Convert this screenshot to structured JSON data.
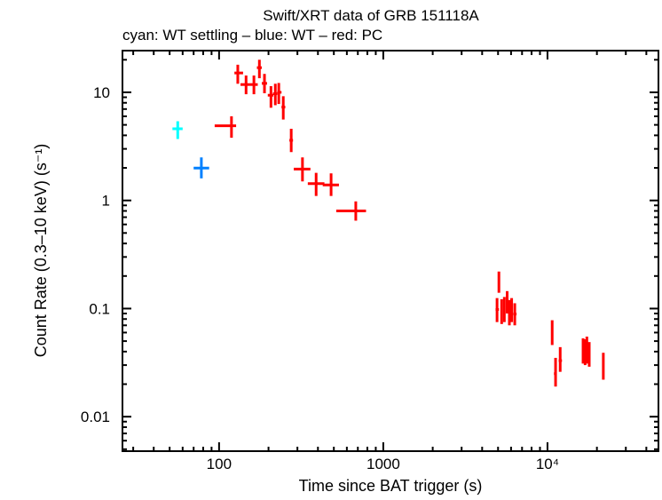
{
  "chart_data": {
    "type": "scatter",
    "title": "Swift/XRT data of GRB 151118A",
    "subtitle": "cyan: WT settling – blue: WT – red: PC",
    "xlabel": "Time since BAT trigger (s)",
    "ylabel": "Count Rate (0.3–10 keV) (s⁻¹)",
    "xscale": "log",
    "yscale": "log",
    "xlim": [
      25.8,
      47400
    ],
    "ylim": [
      0.0048,
      24.3
    ],
    "xticks": [
      {
        "v": 100,
        "label": "100"
      },
      {
        "v": 1000,
        "label": "1000"
      },
      {
        "v": 10000,
        "label": "10⁴"
      }
    ],
    "yticks": [
      {
        "v": 0.01,
        "label": "0.01"
      },
      {
        "v": 0.1,
        "label": "0.1"
      },
      {
        "v": 1,
        "label": "1"
      },
      {
        "v": 10,
        "label": "10"
      }
    ],
    "point_format": [
      "x",
      "x_lo",
      "x_hi",
      "y",
      "y_lo",
      "y_hi"
    ],
    "series": [
      {
        "name": "WT settling",
        "color": "#00ffff",
        "points": [
          [
            56,
            52,
            60,
            4.6,
            3.7,
            5.4
          ]
        ]
      },
      {
        "name": "WT",
        "color": "#0080ff",
        "points": [
          [
            78,
            70,
            87,
            1.99,
            1.6,
            2.5
          ]
        ]
      },
      {
        "name": "PC",
        "color": "#ff0000",
        "points": [
          [
            119,
            94,
            127,
            4.9,
            3.8,
            6.0
          ],
          [
            130,
            124,
            140,
            15.1,
            12,
            18
          ],
          [
            146,
            135,
            154,
            11.8,
            9.6,
            14.3
          ],
          [
            163,
            154,
            172,
            11.8,
            9.6,
            14.3
          ],
          [
            176,
            170,
            182,
            16.9,
            13.5,
            20
          ],
          [
            189,
            182,
            196,
            12.1,
            9.8,
            14.8
          ],
          [
            207,
            198,
            214,
            9.4,
            7.2,
            11.4
          ],
          [
            220,
            213,
            226,
            9.7,
            7.6,
            12
          ],
          [
            231,
            226,
            240,
            10,
            7.8,
            12.2
          ],
          [
            246,
            240,
            253,
            7.3,
            5.6,
            9.2
          ],
          [
            275,
            268,
            282,
            3.6,
            2.8,
            4.6
          ],
          [
            322,
            285,
            360,
            1.95,
            1.5,
            2.5
          ],
          [
            390,
            347,
            438,
            1.43,
            1.1,
            1.8
          ],
          [
            481,
            428,
            537,
            1.39,
            1.1,
            1.78
          ],
          [
            680,
            517,
            785,
            0.8,
            0.65,
            0.98
          ],
          [
            5060,
            5000,
            5120,
            0.173,
            0.14,
            0.22
          ],
          [
            4930,
            4830,
            5060,
            0.098,
            0.075,
            0.125
          ],
          [
            5260,
            5180,
            5340,
            0.095,
            0.072,
            0.122
          ],
          [
            5460,
            5380,
            5540,
            0.1,
            0.075,
            0.128
          ],
          [
            5680,
            5600,
            5760,
            0.116,
            0.09,
            0.145
          ],
          [
            5860,
            5780,
            5940,
            0.094,
            0.07,
            0.12
          ],
          [
            6050,
            5980,
            6130,
            0.098,
            0.075,
            0.125
          ],
          [
            6320,
            6180,
            6480,
            0.089,
            0.07,
            0.112
          ],
          [
            10680,
            10550,
            10810,
            0.06,
            0.046,
            0.078
          ],
          [
            11200,
            10950,
            11400,
            0.025,
            0.019,
            0.035
          ],
          [
            11950,
            11700,
            12250,
            0.033,
            0.026,
            0.044
          ],
          [
            16470,
            16300,
            16650,
            0.041,
            0.031,
            0.053
          ],
          [
            16950,
            16800,
            17100,
            0.039,
            0.03,
            0.052
          ],
          [
            17370,
            17200,
            17550,
            0.041,
            0.031,
            0.055
          ],
          [
            17960,
            17700,
            18200,
            0.038,
            0.029,
            0.049
          ],
          [
            21880,
            21650,
            22100,
            0.029,
            0.022,
            0.039
          ]
        ]
      }
    ]
  }
}
